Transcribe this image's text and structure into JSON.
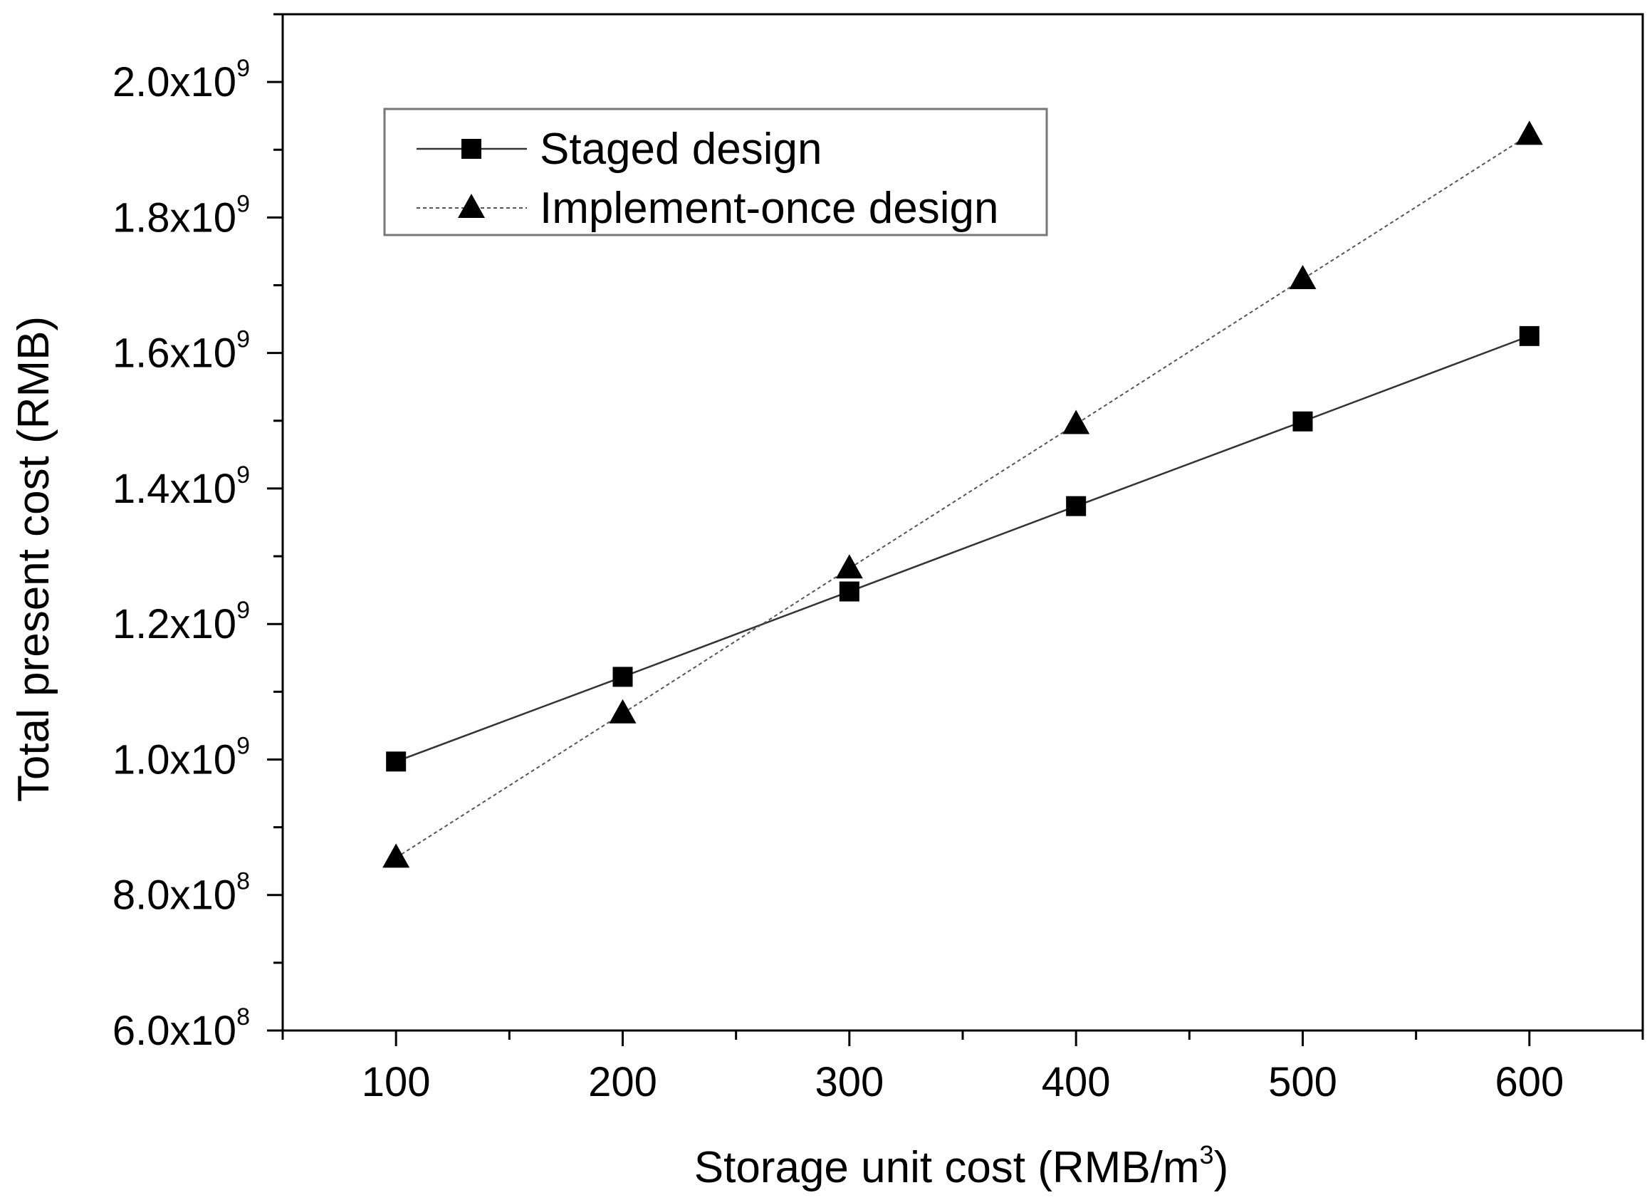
{
  "chart_data": {
    "type": "line",
    "xlabel": "Storage unit cost (RMB/m",
    "xlabel_sup": "3",
    "xlabel_suffix": ")",
    "ylabel": "Total present cost (RMB)",
    "xlim": [
      50,
      650
    ],
    "ylim": [
      600000000,
      2100000000
    ],
    "x_ticks": [
      100,
      200,
      300,
      400,
      500,
      600
    ],
    "y_ticks": [
      {
        "value": 600000000,
        "mantissa": "6.0x10",
        "exp": "8"
      },
      {
        "value": 800000000,
        "mantissa": "8.0x10",
        "exp": "8"
      },
      {
        "value": 1000000000,
        "mantissa": "1.0x10",
        "exp": "9"
      },
      {
        "value": 1200000000,
        "mantissa": "1.2x10",
        "exp": "9"
      },
      {
        "value": 1400000000,
        "mantissa": "1.4x10",
        "exp": "9"
      },
      {
        "value": 1600000000,
        "mantissa": "1.6x10",
        "exp": "9"
      },
      {
        "value": 1800000000,
        "mantissa": "1.8x10",
        "exp": "9"
      },
      {
        "value": 2000000000,
        "mantissa": "2.0x10",
        "exp": "9"
      }
    ],
    "legend_position": "top-left",
    "series": [
      {
        "name": "Staged design",
        "marker": "square",
        "line_style": "solid",
        "x": [
          100,
          200,
          300,
          400,
          500,
          600
        ],
        "values": [
          997000000,
          1122000000,
          1248000000,
          1374000000,
          1499000000,
          1625000000
        ]
      },
      {
        "name": "Implement-once design",
        "marker": "triangle",
        "line_style": "dotted",
        "x": [
          100,
          200,
          300,
          400,
          500,
          600
        ],
        "values": [
          855000000,
          1068000000,
          1282000000,
          1495000000,
          1709000000,
          1922000000
        ]
      }
    ]
  }
}
